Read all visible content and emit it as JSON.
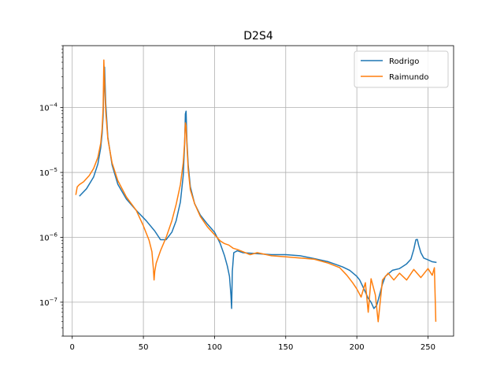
{
  "chart_data": {
    "type": "line",
    "title": "D2S4",
    "xlabel": "",
    "ylabel": "",
    "x_range": [
      -6.5,
      268
    ],
    "y_scale": "log",
    "y_range": [
      3e-08,
      0.0009
    ],
    "x_ticks": [
      0,
      50,
      100,
      150,
      200,
      250
    ],
    "x_tick_labels": [
      "0",
      "50",
      "100",
      "150",
      "200",
      "250"
    ],
    "y_ticks": [
      1e-07,
      1e-06,
      1e-05,
      0.0001
    ],
    "y_tick_labels": [
      {
        "base": "10",
        "exp": "−7"
      },
      {
        "base": "10",
        "exp": "−6"
      },
      {
        "base": "10",
        "exp": "−5"
      },
      {
        "base": "10",
        "exp": "−4"
      }
    ],
    "grid": true,
    "legend_position": "top-right",
    "series": [
      {
        "name": "Rodrigo",
        "color": "#1f77b4",
        "x": [
          5,
          10,
          15,
          18,
          20,
          21,
          21.7,
          22.2,
          22.7,
          23.5,
          25,
          28,
          32,
          38,
          45,
          52,
          58,
          62,
          66,
          70,
          73,
          76,
          78,
          79,
          79.5,
          80,
          80.6,
          81.5,
          83,
          86,
          90,
          95,
          100,
          104,
          107,
          109,
          110.5,
          111.5,
          112,
          112.5,
          113.5,
          116,
          120,
          130,
          140,
          150,
          160,
          170,
          180,
          190,
          195,
          200,
          202,
          205,
          208,
          210,
          212,
          214,
          216,
          218,
          220,
          225,
          230,
          235,
          238,
          240,
          241.5,
          242.5,
          243.5,
          245,
          247,
          250,
          253,
          256
        ],
        "y": [
          4.3e-06,
          5.6e-06,
          8.5e-06,
          1.35e-05,
          2.4e-05,
          4e-05,
          7.5e-05,
          0.00022,
          0.00042,
          0.00012,
          3.5e-05,
          1.3e-05,
          6.6e-06,
          3.9e-06,
          2.6e-06,
          1.8e-06,
          1.25e-06,
          9.2e-07,
          9.2e-07,
          1.2e-06,
          1.8e-06,
          3.5e-06,
          9e-06,
          2.8e-05,
          8e-05,
          8.8e-05,
          3e-05,
          1.3e-05,
          6e-06,
          3.3e-06,
          2.2e-06,
          1.6e-06,
          1.2e-06,
          8e-07,
          5.2e-07,
          3.6e-07,
          2.5e-07,
          1.3e-07,
          8e-08,
          3e-07,
          5.8e-07,
          6.2e-07,
          5.8e-07,
          5.6e-07,
          5.4e-07,
          5.4e-07,
          5.2e-07,
          4.7e-07,
          4.2e-07,
          3.5e-07,
          3.1e-07,
          2.5e-07,
          2.2e-07,
          1.6e-07,
          1.15e-07,
          1e-07,
          8e-08,
          9e-08,
          1.3e-07,
          1.9e-07,
          2.5e-07,
          3.1e-07,
          3.3e-07,
          3.9e-07,
          4.6e-07,
          6.5e-07,
          9.2e-07,
          9.3e-07,
          7.5e-07,
          5.8e-07,
          4.8e-07,
          4.5e-07,
          4.2e-07,
          4.1e-07
        ]
      },
      {
        "name": "Raimundo",
        "color": "#ff7f0e",
        "x": [
          2.5,
          3.5,
          5,
          8,
          12,
          15,
          18,
          20,
          21,
          21.7,
          22.2,
          22.7,
          23.5,
          25,
          28,
          32,
          38,
          45,
          50,
          54,
          56,
          57,
          57.5,
          58,
          59,
          62,
          66,
          70,
          73,
          76,
          78,
          79,
          79.5,
          80,
          80.6,
          81.5,
          83,
          86,
          90,
          95,
          100,
          104,
          107,
          110,
          113,
          116,
          120,
          125,
          130,
          140,
          150,
          160,
          170,
          180,
          188,
          193,
          197,
          200,
          203,
          206,
          208,
          210,
          213,
          215,
          218,
          222,
          226,
          230,
          235,
          240,
          245,
          250,
          253,
          254.5,
          255.5
        ],
        "y": [
          4.5e-06,
          6e-06,
          6.5e-06,
          7.2e-06,
          9e-06,
          1.15e-05,
          1.7e-05,
          2.8e-05,
          4.8e-05,
          0.0001,
          0.00054,
          0.00025,
          8.8e-05,
          3.3e-05,
          1.4e-05,
          7.5e-06,
          4.2e-06,
          2.6e-06,
          1.5e-06,
          9e-07,
          6e-07,
          3.3e-07,
          2.2e-07,
          3e-07,
          4e-07,
          6.2e-07,
          1e-06,
          1.8e-06,
          3.2e-06,
          6.5e-06,
          1.4e-05,
          3e-05,
          5.8e-05,
          5.2e-05,
          2.6e-05,
          1.1e-05,
          5.4e-06,
          3.3e-06,
          2.1e-06,
          1.45e-06,
          1.1e-06,
          8.8e-07,
          8e-07,
          7.6e-07,
          6.8e-07,
          6.5e-07,
          6e-07,
          5.4e-07,
          5.8e-07,
          5.2e-07,
          5e-07,
          4.8e-07,
          4.6e-07,
          4e-07,
          3.4e-07,
          2.6e-07,
          2e-07,
          1.6e-07,
          1.2e-07,
          2e-07,
          7e-08,
          2.3e-07,
          1.3e-07,
          5e-08,
          2.2e-07,
          2.8e-07,
          2.2e-07,
          2.8e-07,
          2.2e-07,
          3.2e-07,
          2.4e-07,
          3.3e-07,
          2.6e-07,
          3.4e-07,
          5e-08
        ]
      }
    ]
  }
}
